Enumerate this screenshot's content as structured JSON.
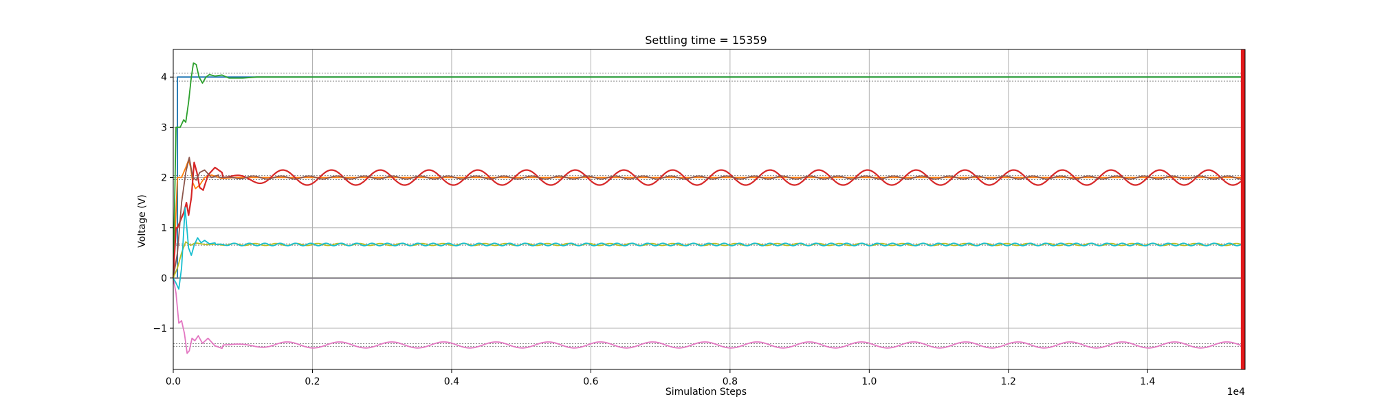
{
  "chart_data": {
    "type": "line",
    "title": "Settling time = 15359",
    "xlabel": "Simulation Steps",
    "ylabel": "Voltage (V)",
    "x_offset_label": "1e4",
    "xlim": [
      0,
      15400
    ],
    "ylim": [
      -1.82,
      4.55
    ],
    "x_ticks": [
      0,
      2000,
      4000,
      6000,
      8000,
      10000,
      12000,
      14000
    ],
    "x_tick_labels": [
      "0.0",
      "0.2",
      "0.4",
      "0.6",
      "0.8",
      "1.0",
      "1.2",
      "1.4"
    ],
    "y_ticks": [
      -1,
      0,
      1,
      2,
      3,
      4
    ],
    "y_tick_labels": [
      "−1",
      "0",
      "1",
      "2",
      "3",
      "4"
    ],
    "grid": true,
    "settling_time": 15359,
    "settling_marker_color": "#e31a1c",
    "tolerance_bands": [
      {
        "center": 4.0,
        "lower": 3.92,
        "upper": 4.08
      },
      {
        "center": 2.0,
        "lower": 1.96,
        "upper": 2.04
      },
      {
        "center": 0.667,
        "lower": 0.653,
        "upper": 0.68
      },
      {
        "center": -1.333,
        "lower": -1.36,
        "upper": -1.307
      }
    ],
    "series": [
      {
        "color": "#1f77b4",
        "x": [
          0,
          60,
          60,
          15359
        ],
        "y": [
          0,
          0,
          4.0,
          4.0
        ]
      },
      {
        "color": "#ff7f0e",
        "x": [
          0,
          60,
          120,
          180,
          220,
          250,
          280,
          320,
          380,
          450,
          550,
          700,
          900,
          15359
        ],
        "y": [
          0,
          2.0,
          2.0,
          2.2,
          2.35,
          2.2,
          1.9,
          1.78,
          1.85,
          2.0,
          2.05,
          1.98,
          2.0,
          2.0
        ]
      },
      {
        "color": "#2ca02c",
        "x": [
          0,
          40,
          100,
          150,
          180,
          220,
          260,
          290,
          330,
          370,
          420,
          470,
          520,
          600,
          700,
          800,
          1000,
          1200,
          15359
        ],
        "y": [
          0,
          3.0,
          3.0,
          3.15,
          3.1,
          3.5,
          4.0,
          4.28,
          4.25,
          4.0,
          3.88,
          4.0,
          4.05,
          4.02,
          4.04,
          3.98,
          3.98,
          4.0,
          4.0
        ]
      },
      {
        "color": "#d62728",
        "base": 2.0,
        "amplitude": 0.15,
        "period": 700,
        "x": [
          0,
          40,
          60,
          150,
          190,
          220,
          260,
          300,
          340,
          380,
          430,
          500,
          600,
          700,
          15359
        ],
        "y": [
          0,
          1.0,
          1.0,
          1.3,
          1.5,
          1.25,
          1.6,
          2.3,
          2.1,
          1.8,
          1.75,
          2.05,
          2.2,
          2.1,
          2.0
        ]
      },
      {
        "color": "#9467bd",
        "x": [
          0,
          120,
          220,
          400,
          700,
          15359
        ],
        "y": [
          0,
          0,
          0,
          0,
          0,
          0
        ]
      },
      {
        "color": "#8c564b",
        "base": 2.0,
        "amplitude": 0.03,
        "period": 400,
        "x": [
          0,
          60,
          120,
          180,
          230,
          280,
          330,
          380,
          450,
          550,
          650,
          15359
        ],
        "y": [
          0,
          0.5,
          1.5,
          2.1,
          2.4,
          2.0,
          1.95,
          2.1,
          2.15,
          2.0,
          2.05,
          2.0
        ]
      },
      {
        "color": "#e377c2",
        "base": -1.333,
        "amplitude": 0.06,
        "period": 750,
        "x": [
          0,
          40,
          80,
          120,
          160,
          200,
          230,
          270,
          310,
          360,
          420,
          500,
          600,
          700,
          15359
        ],
        "y": [
          0,
          -0.3,
          -0.9,
          -0.85,
          -1.1,
          -1.5,
          -1.45,
          -1.2,
          -1.25,
          -1.15,
          -1.3,
          -1.2,
          -1.35,
          -1.4,
          -1.333
        ]
      },
      {
        "color": "#7f7f7f",
        "x": [
          0,
          15359
        ],
        "y": [
          0,
          0
        ]
      },
      {
        "color": "#bcbd22",
        "base": 0.667,
        "amplitude": 0.02,
        "period": 300,
        "x": [
          0,
          60,
          120,
          180,
          250,
          320,
          400,
          500,
          15359
        ],
        "y": [
          0,
          0.2,
          0.5,
          0.72,
          0.65,
          0.7,
          0.68,
          0.66,
          0.667
        ]
      },
      {
        "color": "#17becf",
        "base": 0.667,
        "amplitude": 0.025,
        "period": 220,
        "x": [
          0,
          40,
          80,
          120,
          170,
          220,
          260,
          300,
          350,
          400,
          450,
          520,
          600,
          15359
        ],
        "y": [
          0,
          -0.1,
          -0.22,
          0.2,
          1.4,
          0.6,
          0.45,
          0.65,
          0.8,
          0.7,
          0.75,
          0.68,
          0.7,
          0.667
        ]
      }
    ]
  }
}
